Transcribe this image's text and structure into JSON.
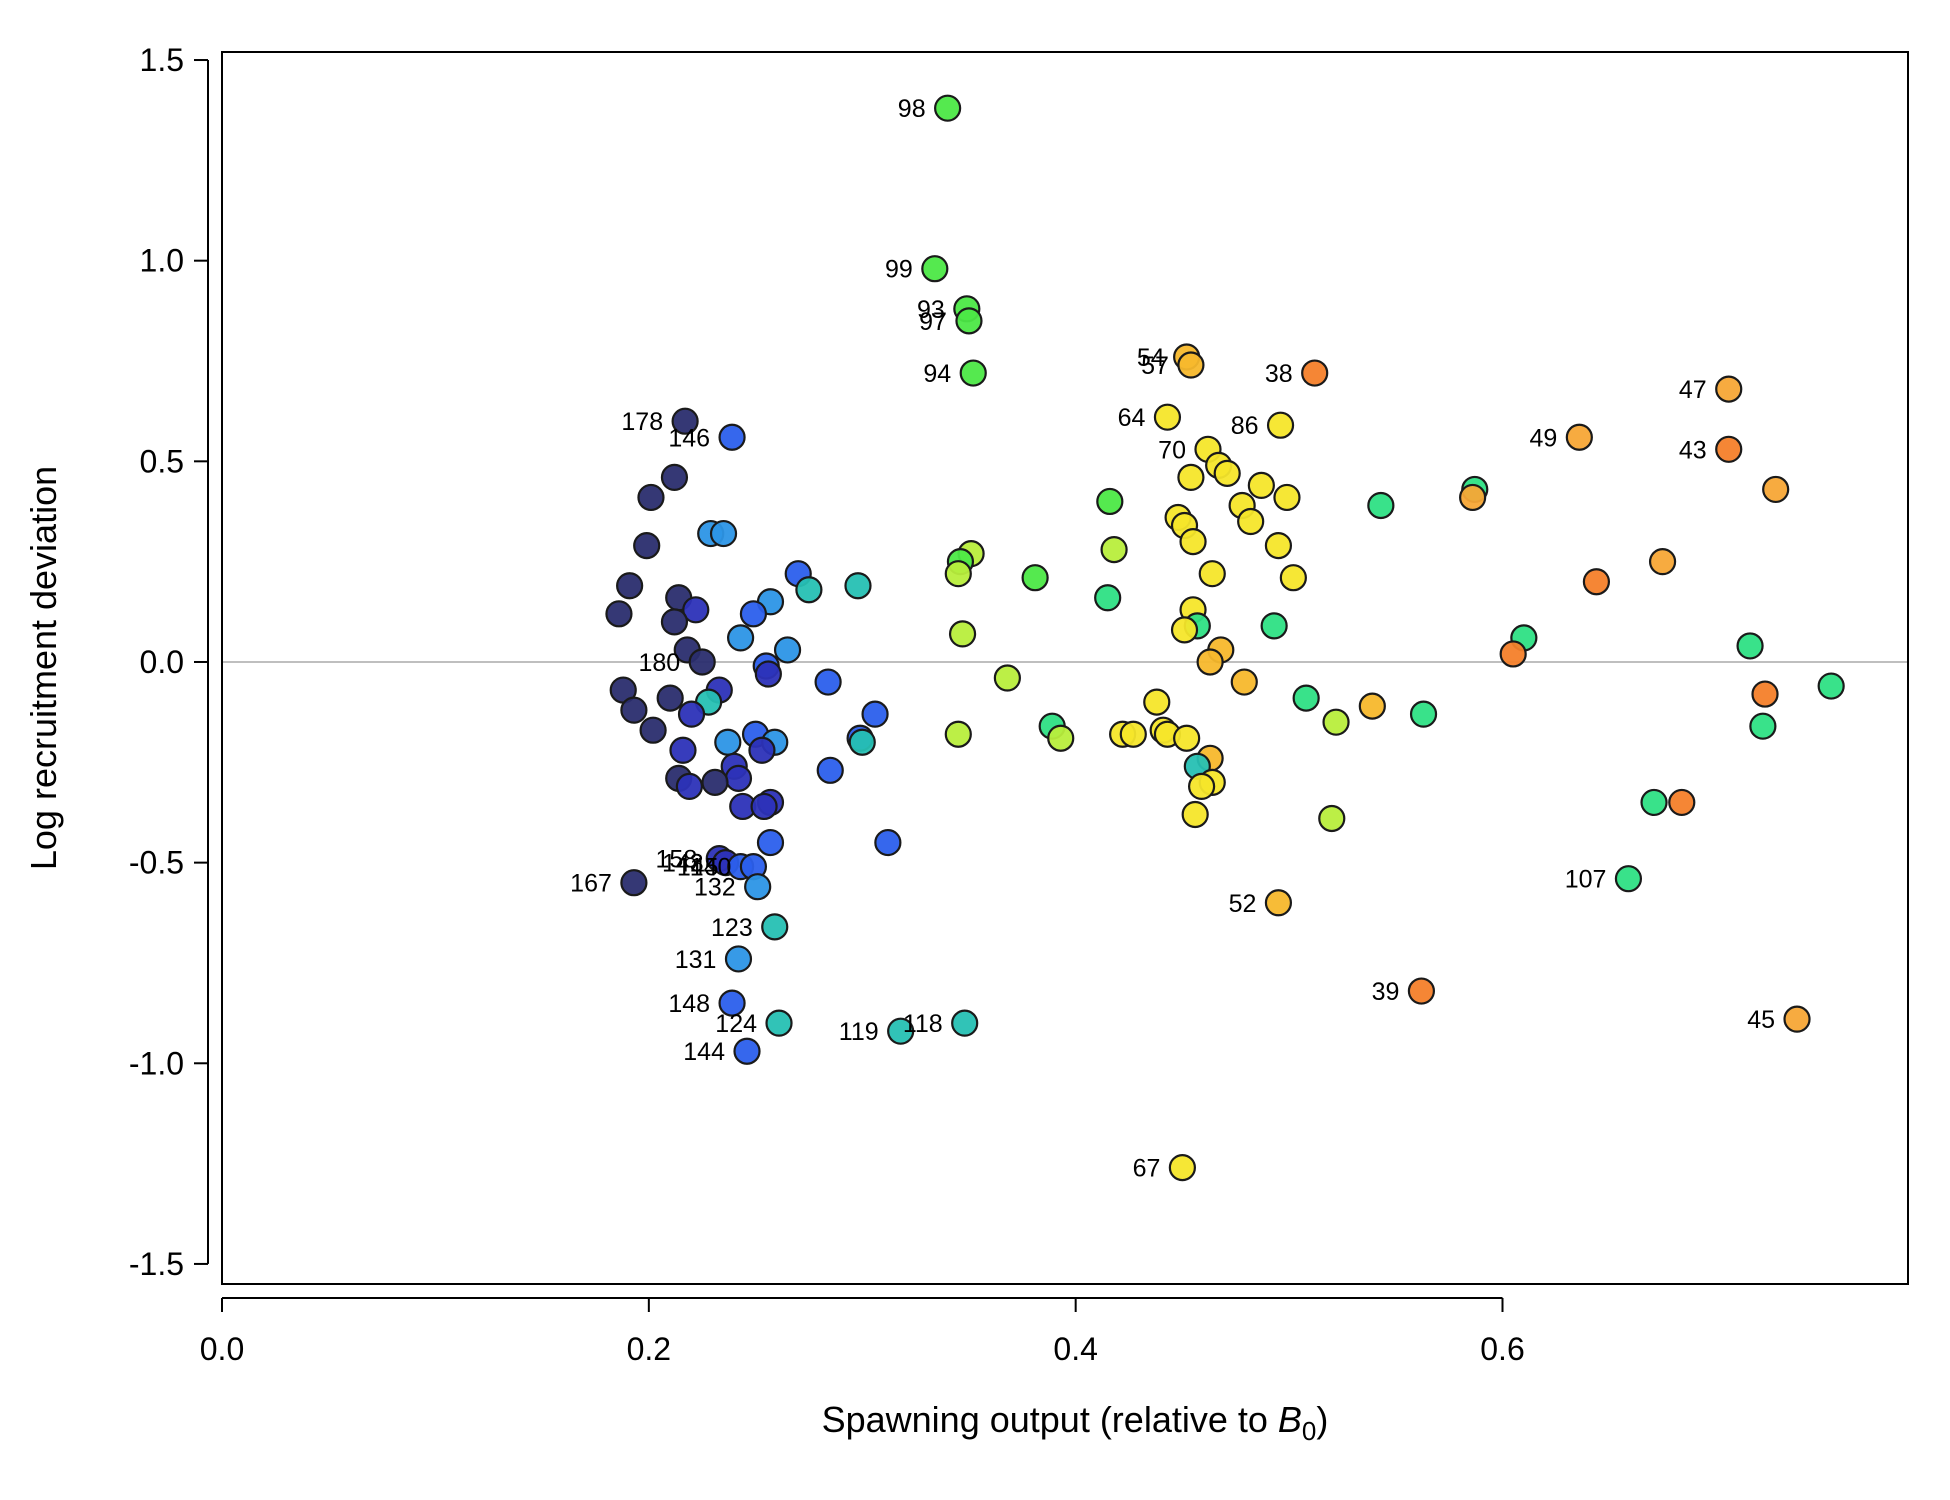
{
  "chart_data": {
    "type": "scatter",
    "xlabel": "Spawning output (relative to ",
    "xlabel_sym": "B",
    "xlabel_sub": "0",
    "xlabel_end": ")",
    "ylabel": "Log recruitment deviation",
    "xlim": [
      0,
      0.79
    ],
    "ylim": [
      -1.55,
      1.52
    ],
    "x_ticks": [
      0.0,
      0.2,
      0.4,
      0.6
    ],
    "x_tick_labels": [
      "0.0",
      "0.2",
      "0.4",
      "0.6"
    ],
    "y_ticks": [
      1.5,
      1.0,
      0.5,
      0.0,
      -0.5,
      -1.0,
      -1.5
    ],
    "y_tick_labels": [
      "1.5",
      "1.0",
      "0.5",
      "0.0",
      "-0.5",
      "-1.0",
      "-1.5"
    ],
    "reference_line_y": 0,
    "grid": false,
    "legend": "none",
    "point_style": "circle with dark outline, colored by year index (navy→blue→teal→green→yellow→orange, newest to oldest)",
    "colors": {
      "navy": "#2a2d6e",
      "indigo": "#2c32b8",
      "blue": "#2b5fec",
      "sky": "#2c95e6",
      "teal": "#26c0b3",
      "emerald": "#2ee084",
      "green": "#4ce846",
      "lime": "#b8ee3c",
      "yellow": "#f6e62a",
      "amber": "#f7b82c",
      "orange": "#f7a636",
      "darkorange": "#f47f2a",
      "zero_line": "#bfbfbf"
    },
    "points": [
      {
        "x": 0.34,
        "y": 1.38,
        "c": "green",
        "label": "98"
      },
      {
        "x": 0.334,
        "y": 0.98,
        "c": "green",
        "label": "99"
      },
      {
        "x": 0.349,
        "y": 0.88,
        "c": "green",
        "label": "93"
      },
      {
        "x": 0.35,
        "y": 0.85,
        "c": "green",
        "label": "97"
      },
      {
        "x": 0.352,
        "y": 0.72,
        "c": "green",
        "label": "94"
      },
      {
        "x": 0.452,
        "y": 0.76,
        "c": "amber",
        "label": "54"
      },
      {
        "x": 0.454,
        "y": 0.74,
        "c": "amber",
        "label": "57"
      },
      {
        "x": 0.512,
        "y": 0.72,
        "c": "darkorange",
        "label": "38"
      },
      {
        "x": 0.706,
        "y": 0.68,
        "c": "orange",
        "label": "47"
      },
      {
        "x": 0.443,
        "y": 0.61,
        "c": "yellow",
        "label": "64"
      },
      {
        "x": 0.496,
        "y": 0.59,
        "c": "yellow",
        "label": "86"
      },
      {
        "x": 0.217,
        "y": 0.6,
        "c": "navy",
        "label": "178"
      },
      {
        "x": 0.239,
        "y": 0.56,
        "c": "blue",
        "label": "146"
      },
      {
        "x": 0.636,
        "y": 0.56,
        "c": "orange",
        "label": "49"
      },
      {
        "x": 0.462,
        "y": 0.53,
        "c": "yellow",
        "label": "70"
      },
      {
        "x": 0.706,
        "y": 0.53,
        "c": "darkorange",
        "label": "43"
      },
      {
        "x": 0.212,
        "y": 0.46,
        "c": "navy"
      },
      {
        "x": 0.467,
        "y": 0.49,
        "c": "yellow"
      },
      {
        "x": 0.471,
        "y": 0.47,
        "c": "yellow"
      },
      {
        "x": 0.454,
        "y": 0.46,
        "c": "yellow"
      },
      {
        "x": 0.487,
        "y": 0.44,
        "c": "yellow"
      },
      {
        "x": 0.587,
        "y": 0.43,
        "c": "emerald"
      },
      {
        "x": 0.586,
        "y": 0.41,
        "c": "orange"
      },
      {
        "x": 0.728,
        "y": 0.43,
        "c": "orange"
      },
      {
        "x": 0.201,
        "y": 0.41,
        "c": "navy"
      },
      {
        "x": 0.499,
        "y": 0.41,
        "c": "yellow"
      },
      {
        "x": 0.416,
        "y": 0.4,
        "c": "green"
      },
      {
        "x": 0.478,
        "y": 0.39,
        "c": "yellow"
      },
      {
        "x": 0.543,
        "y": 0.39,
        "c": "emerald"
      },
      {
        "x": 0.448,
        "y": 0.36,
        "c": "yellow"
      },
      {
        "x": 0.482,
        "y": 0.35,
        "c": "yellow"
      },
      {
        "x": 0.451,
        "y": 0.34,
        "c": "yellow"
      },
      {
        "x": 0.229,
        "y": 0.32,
        "c": "sky"
      },
      {
        "x": 0.235,
        "y": 0.32,
        "c": "sky"
      },
      {
        "x": 0.455,
        "y": 0.3,
        "c": "yellow"
      },
      {
        "x": 0.199,
        "y": 0.29,
        "c": "navy"
      },
      {
        "x": 0.495,
        "y": 0.29,
        "c": "yellow"
      },
      {
        "x": 0.418,
        "y": 0.28,
        "c": "lime"
      },
      {
        "x": 0.351,
        "y": 0.27,
        "c": "lime"
      },
      {
        "x": 0.675,
        "y": 0.25,
        "c": "orange"
      },
      {
        "x": 0.346,
        "y": 0.25,
        "c": "green"
      },
      {
        "x": 0.345,
        "y": 0.22,
        "c": "lime"
      },
      {
        "x": 0.27,
        "y": 0.22,
        "c": "blue"
      },
      {
        "x": 0.464,
        "y": 0.22,
        "c": "yellow"
      },
      {
        "x": 0.381,
        "y": 0.21,
        "c": "green"
      },
      {
        "x": 0.502,
        "y": 0.21,
        "c": "yellow"
      },
      {
        "x": 0.644,
        "y": 0.2,
        "c": "darkorange"
      },
      {
        "x": 0.298,
        "y": 0.19,
        "c": "teal"
      },
      {
        "x": 0.191,
        "y": 0.19,
        "c": "navy"
      },
      {
        "x": 0.275,
        "y": 0.18,
        "c": "teal"
      },
      {
        "x": 0.415,
        "y": 0.16,
        "c": "emerald"
      },
      {
        "x": 0.214,
        "y": 0.16,
        "c": "navy"
      },
      {
        "x": 0.257,
        "y": 0.15,
        "c": "sky"
      },
      {
        "x": 0.222,
        "y": 0.13,
        "c": "indigo"
      },
      {
        "x": 0.455,
        "y": 0.13,
        "c": "yellow"
      },
      {
        "x": 0.249,
        "y": 0.12,
        "c": "blue"
      },
      {
        "x": 0.186,
        "y": 0.12,
        "c": "navy"
      },
      {
        "x": 0.212,
        "y": 0.1,
        "c": "navy"
      },
      {
        "x": 0.457,
        "y": 0.09,
        "c": "emerald"
      },
      {
        "x": 0.493,
        "y": 0.09,
        "c": "emerald"
      },
      {
        "x": 0.451,
        "y": 0.08,
        "c": "yellow"
      },
      {
        "x": 0.347,
        "y": 0.07,
        "c": "lime"
      },
      {
        "x": 0.61,
        "y": 0.06,
        "c": "emerald"
      },
      {
        "x": 0.243,
        "y": 0.06,
        "c": "sky"
      },
      {
        "x": 0.716,
        "y": 0.04,
        "c": "emerald"
      },
      {
        "x": 0.218,
        "y": 0.03,
        "c": "navy"
      },
      {
        "x": 0.265,
        "y": 0.03,
        "c": "sky"
      },
      {
        "x": 0.468,
        "y": 0.03,
        "c": "amber"
      },
      {
        "x": 0.605,
        "y": 0.02,
        "c": "darkorange"
      },
      {
        "x": 0.225,
        "y": 0.0,
        "c": "navy",
        "label": "180"
      },
      {
        "x": 0.463,
        "y": 0.0,
        "c": "amber"
      },
      {
        "x": 0.255,
        "y": -0.01,
        "c": "blue"
      },
      {
        "x": 0.256,
        "y": -0.03,
        "c": "indigo"
      },
      {
        "x": 0.368,
        "y": -0.04,
        "c": "lime"
      },
      {
        "x": 0.284,
        "y": -0.05,
        "c": "blue"
      },
      {
        "x": 0.479,
        "y": -0.05,
        "c": "amber"
      },
      {
        "x": 0.754,
        "y": -0.06,
        "c": "emerald"
      },
      {
        "x": 0.188,
        "y": -0.07,
        "c": "navy"
      },
      {
        "x": 0.233,
        "y": -0.07,
        "c": "indigo"
      },
      {
        "x": 0.723,
        "y": -0.08,
        "c": "darkorange"
      },
      {
        "x": 0.508,
        "y": -0.09,
        "c": "emerald"
      },
      {
        "x": 0.21,
        "y": -0.09,
        "c": "navy"
      },
      {
        "x": 0.228,
        "y": -0.1,
        "c": "teal"
      },
      {
        "x": 0.438,
        "y": -0.1,
        "c": "yellow"
      },
      {
        "x": 0.539,
        "y": -0.11,
        "c": "amber"
      },
      {
        "x": 0.193,
        "y": -0.12,
        "c": "navy"
      },
      {
        "x": 0.306,
        "y": -0.13,
        "c": "blue"
      },
      {
        "x": 0.22,
        "y": -0.13,
        "c": "indigo"
      },
      {
        "x": 0.563,
        "y": -0.13,
        "c": "emerald"
      },
      {
        "x": 0.522,
        "y": -0.15,
        "c": "lime"
      },
      {
        "x": 0.722,
        "y": -0.16,
        "c": "emerald"
      },
      {
        "x": 0.389,
        "y": -0.16,
        "c": "emerald"
      },
      {
        "x": 0.202,
        "y": -0.17,
        "c": "navy"
      },
      {
        "x": 0.422,
        "y": -0.18,
        "c": "yellow"
      },
      {
        "x": 0.427,
        "y": -0.18,
        "c": "yellow"
      },
      {
        "x": 0.441,
        "y": -0.17,
        "c": "yellow"
      },
      {
        "x": 0.443,
        "y": -0.18,
        "c": "yellow"
      },
      {
        "x": 0.345,
        "y": -0.18,
        "c": "lime"
      },
      {
        "x": 0.25,
        "y": -0.18,
        "c": "blue"
      },
      {
        "x": 0.299,
        "y": -0.19,
        "c": "blue"
      },
      {
        "x": 0.393,
        "y": -0.19,
        "c": "lime"
      },
      {
        "x": 0.452,
        "y": -0.19,
        "c": "yellow"
      },
      {
        "x": 0.259,
        "y": -0.2,
        "c": "sky"
      },
      {
        "x": 0.237,
        "y": -0.2,
        "c": "sky"
      },
      {
        "x": 0.3,
        "y": -0.2,
        "c": "teal"
      },
      {
        "x": 0.253,
        "y": -0.22,
        "c": "indigo"
      },
      {
        "x": 0.216,
        "y": -0.22,
        "c": "indigo"
      },
      {
        "x": 0.463,
        "y": -0.24,
        "c": "amber"
      },
      {
        "x": 0.24,
        "y": -0.26,
        "c": "indigo"
      },
      {
        "x": 0.457,
        "y": -0.26,
        "c": "teal"
      },
      {
        "x": 0.285,
        "y": -0.27,
        "c": "blue"
      },
      {
        "x": 0.214,
        "y": -0.29,
        "c": "navy"
      },
      {
        "x": 0.242,
        "y": -0.29,
        "c": "indigo"
      },
      {
        "x": 0.231,
        "y": -0.3,
        "c": "navy"
      },
      {
        "x": 0.464,
        "y": -0.3,
        "c": "yellow"
      },
      {
        "x": 0.219,
        "y": -0.31,
        "c": "indigo"
      },
      {
        "x": 0.459,
        "y": -0.31,
        "c": "yellow"
      },
      {
        "x": 0.257,
        "y": -0.35,
        "c": "indigo"
      },
      {
        "x": 0.671,
        "y": -0.35,
        "c": "emerald"
      },
      {
        "x": 0.684,
        "y": -0.35,
        "c": "darkorange"
      },
      {
        "x": 0.244,
        "y": -0.36,
        "c": "indigo"
      },
      {
        "x": 0.254,
        "y": -0.36,
        "c": "indigo"
      },
      {
        "x": 0.456,
        "y": -0.38,
        "c": "yellow"
      },
      {
        "x": 0.52,
        "y": -0.39,
        "c": "lime"
      },
      {
        "x": 0.312,
        "y": -0.45,
        "c": "blue"
      },
      {
        "x": 0.257,
        "y": -0.45,
        "c": "blue"
      },
      {
        "x": 0.233,
        "y": -0.49,
        "c": "indigo",
        "label": "158"
      },
      {
        "x": 0.236,
        "y": -0.5,
        "c": "indigo",
        "label": "143"
      },
      {
        "x": 0.243,
        "y": -0.51,
        "c": "blue",
        "label": "145"
      },
      {
        "x": 0.249,
        "y": -0.51,
        "c": "blue",
        "label": "140"
      },
      {
        "x": 0.193,
        "y": -0.55,
        "c": "navy",
        "label": "167"
      },
      {
        "x": 0.251,
        "y": -0.56,
        "c": "sky",
        "label": "132"
      },
      {
        "x": 0.659,
        "y": -0.54,
        "c": "emerald",
        "label": "107"
      },
      {
        "x": 0.495,
        "y": -0.6,
        "c": "amber",
        "label": "52"
      },
      {
        "x": 0.259,
        "y": -0.66,
        "c": "teal",
        "label": "123"
      },
      {
        "x": 0.242,
        "y": -0.74,
        "c": "sky",
        "label": "131"
      },
      {
        "x": 0.562,
        "y": -0.82,
        "c": "darkorange",
        "label": "39"
      },
      {
        "x": 0.239,
        "y": -0.85,
        "c": "blue",
        "label": "148"
      },
      {
        "x": 0.261,
        "y": -0.9,
        "c": "teal",
        "label": "124"
      },
      {
        "x": 0.348,
        "y": -0.9,
        "c": "teal",
        "label": "118"
      },
      {
        "x": 0.318,
        "y": -0.92,
        "c": "teal",
        "label": "119"
      },
      {
        "x": 0.738,
        "y": -0.89,
        "c": "orange",
        "label": "45"
      },
      {
        "x": 0.246,
        "y": -0.97,
        "c": "blue",
        "label": "144"
      },
      {
        "x": 0.45,
        "y": -1.26,
        "c": "yellow",
        "label": "67"
      }
    ]
  }
}
